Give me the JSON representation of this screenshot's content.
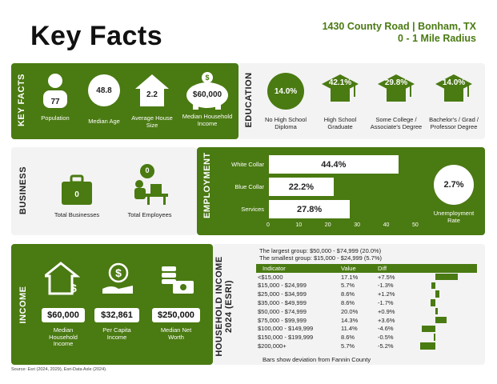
{
  "header": {
    "title": "Key Facts",
    "address": "1430 County Road | Bonham, TX",
    "radius": "0 - 1 Mile Radius"
  },
  "key_facts": {
    "label": "KEY FACTS",
    "population": {
      "value": "77",
      "label": "Population"
    },
    "median_age": {
      "value": "48.8",
      "label": "Median Age"
    },
    "avg_household_size": {
      "value": "2.2",
      "label": "Average House Size"
    },
    "median_household_income": {
      "value": "$60,000",
      "label": "Median Household Income"
    }
  },
  "education": {
    "label": "EDUCATION",
    "items": [
      {
        "value": "14.0%",
        "label": "No High School Diploma"
      },
      {
        "value": "42.1%",
        "label": "High School Graduate"
      },
      {
        "value": "29.8%",
        "label": "Some College / Associate's Degree"
      },
      {
        "value": "14.0%",
        "label": "Bachelor's / Grad / Professor Degree"
      }
    ]
  },
  "business": {
    "label": "BUSINESS",
    "total_businesses": {
      "value": "0",
      "label": "Total Businesses"
    },
    "total_employees": {
      "value": "0",
      "label": "Total Employees"
    }
  },
  "employment": {
    "label": "EMPLOYMENT",
    "unemployment": {
      "value": "2.7%",
      "label": "Unemployment Rate"
    },
    "chart_data": {
      "type": "bar",
      "categories": [
        "White Collar",
        "Blue Collar",
        "Services"
      ],
      "values": [
        44.4,
        22.2,
        27.8
      ],
      "value_labels": [
        "44.4%",
        "22.2%",
        "27.8%"
      ],
      "xlim": [
        0,
        50
      ],
      "ticks": [
        "0",
        "10",
        "20",
        "30",
        "40",
        "50"
      ]
    }
  },
  "income": {
    "label": "INCOME",
    "median_household": {
      "value": "$60,000",
      "label": "Median Household Income"
    },
    "per_capita": {
      "value": "$32,861",
      "label": "Per Capita Income"
    },
    "median_net_worth": {
      "value": "$250,000",
      "label": "Median Net Worth"
    }
  },
  "household_income": {
    "label": "HOUSEHOLD INCOME 2024 (ESRI)",
    "largest": "The largest group: $50,000 - $74,999 (20.0%)",
    "smallest": "The smallest group: $15,000 - $24,999 (5.7%)",
    "columns": [
      "Indicator",
      "Value",
      "Diff"
    ],
    "note": "Bars show deviation from Fannin County",
    "chart_data": {
      "type": "table",
      "rows": [
        {
          "indicator": "<$15,000",
          "value": "17.1%",
          "diff": "+7.5%",
          "diff_num": 7.5
        },
        {
          "indicator": "$15,000 - $24,999",
          "value": "5.7%",
          "diff": "-1.3%",
          "diff_num": -1.3
        },
        {
          "indicator": "$25,000 - $34,999",
          "value": "8.6%",
          "diff": "+1.2%",
          "diff_num": 1.2
        },
        {
          "indicator": "$35,000 - $49,999",
          "value": "8.6%",
          "diff": "-1.7%",
          "diff_num": -1.7
        },
        {
          "indicator": "$50,000 - $74,999",
          "value": "20.0%",
          "diff": "+0.9%",
          "diff_num": 0.9
        },
        {
          "indicator": "$75,000 - $99,999",
          "value": "14.3%",
          "diff": "+3.6%",
          "diff_num": 3.6
        },
        {
          "indicator": "$100,000 - $149,999",
          "value": "11.4%",
          "diff": "-4.6%",
          "diff_num": -4.6
        },
        {
          "indicator": "$150,000 - $199,999",
          "value": "8.6%",
          "diff": "-0.5%",
          "diff_num": -0.5
        },
        {
          "indicator": "$200,000+",
          "value": "5.7%",
          "diff": "-5.2%",
          "diff_num": -5.2
        }
      ]
    }
  },
  "footer": {
    "source": "Source: Esri (2024, 2029), Esri-Data Axle (2024)."
  },
  "colors": {
    "accent": "#4a7a12",
    "panel_bg": "#f3f3f3"
  }
}
